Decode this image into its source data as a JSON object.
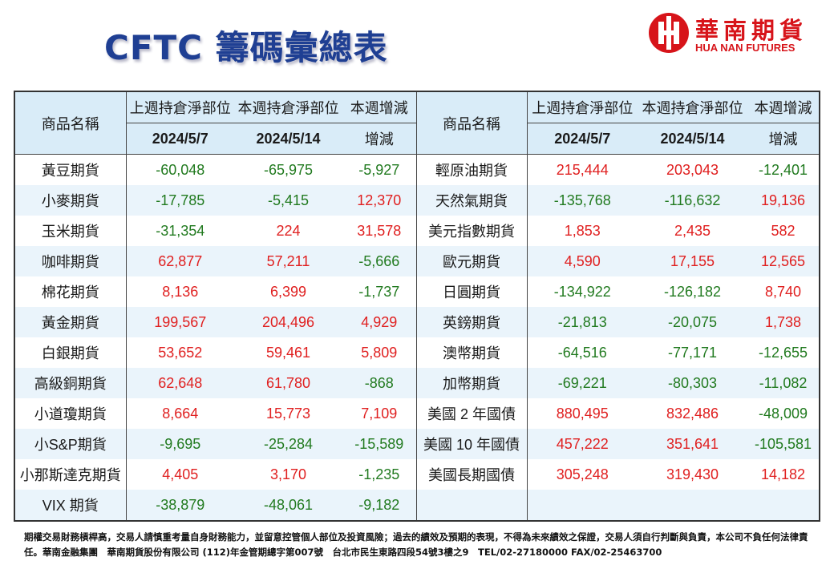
{
  "title": "CFTC 籌碼彙總表",
  "logo": {
    "cn": "華南期貨",
    "en": "HUA NAN FUTURES"
  },
  "header": {
    "name_col": "商品名稱",
    "prev_label": "上週持倉淨部位",
    "curr_label": "本週持倉淨部位",
    "change_label": "本週增減",
    "prev_date": "2024/5/7",
    "curr_date": "2024/5/14",
    "change_sub": "增減"
  },
  "left_rows": [
    {
      "name": "黃豆期貨",
      "prev": "-60,048",
      "curr": "-65,975",
      "chg": "-5,927"
    },
    {
      "name": "小麥期貨",
      "prev": "-17,785",
      "curr": "-5,415",
      "chg": "12,370"
    },
    {
      "name": "玉米期貨",
      "prev": "-31,354",
      "curr": "224",
      "chg": "31,578"
    },
    {
      "name": "咖啡期貨",
      "prev": "62,877",
      "curr": "57,211",
      "chg": "-5,666"
    },
    {
      "name": "棉花期貨",
      "prev": "8,136",
      "curr": "6,399",
      "chg": "-1,737"
    },
    {
      "name": "黃金期貨",
      "prev": "199,567",
      "curr": "204,496",
      "chg": "4,929"
    },
    {
      "name": "白銀期貨",
      "prev": "53,652",
      "curr": "59,461",
      "chg": "5,809"
    },
    {
      "name": "高級銅期貨",
      "prev": "62,648",
      "curr": "61,780",
      "chg": "-868"
    },
    {
      "name": "小道瓊期貨",
      "prev": "8,664",
      "curr": "15,773",
      "chg": "7,109"
    },
    {
      "name": "小S&P期貨",
      "prev": "-9,695",
      "curr": "-25,284",
      "chg": "-15,589"
    },
    {
      "name": "小那斯達克期貨",
      "prev": "4,405",
      "curr": "3,170",
      "chg": "-1,235"
    },
    {
      "name": "VIX 期貨",
      "prev": "-38,879",
      "curr": "-48,061",
      "chg": "-9,182"
    }
  ],
  "right_rows": [
    {
      "name": "輕原油期貨",
      "prev": "215,444",
      "curr": "203,043",
      "chg": "-12,401"
    },
    {
      "name": "天然氣期貨",
      "prev": "-135,768",
      "curr": "-116,632",
      "chg": "19,136"
    },
    {
      "name": "美元指數期貨",
      "prev": "1,853",
      "curr": "2,435",
      "chg": "582"
    },
    {
      "name": "歐元期貨",
      "prev": "4,590",
      "curr": "17,155",
      "chg": "12,565"
    },
    {
      "name": "日圓期貨",
      "prev": "-134,922",
      "curr": "-126,182",
      "chg": "8,740"
    },
    {
      "name": "英鎊期貨",
      "prev": "-21,813",
      "curr": "-20,075",
      "chg": "1,738"
    },
    {
      "name": "澳幣期貨",
      "prev": "-64,516",
      "curr": "-77,171",
      "chg": "-12,655"
    },
    {
      "name": "加幣期貨",
      "prev": "-69,221",
      "curr": "-80,303",
      "chg": "-11,082"
    },
    {
      "name": "美國 2 年國債",
      "prev": "880,495",
      "curr": "832,486",
      "chg": "-48,009"
    },
    {
      "name": "美國 10 年國債",
      "prev": "457,222",
      "curr": "351,641",
      "chg": "-105,581"
    },
    {
      "name": "美國長期國債",
      "prev": "305,248",
      "curr": "319,430",
      "chg": "14,182"
    },
    {
      "name": "",
      "prev": "",
      "curr": "",
      "chg": ""
    }
  ],
  "disclaimer": "期權交易財務槓桿高，交易人請慎重考量自身財務能力，並留意控管個人部位及投資風險；過去的績效及預期的表現，不得為未來績效之保證，交易人須自行判斷與負責，本公司不負任何法律責任。華南金融集團　華南期貨股份有限公司 (112)年金管期總字第007號　台北市民生東路四段54號3樓之9　TEL/02-27180000 FAX/02-25463700",
  "colors": {
    "positive": "#e02020",
    "negative": "#217a1f",
    "header_bg": "#d9ecf8",
    "title": "#1f3f93",
    "brand": "#d7141a"
  }
}
